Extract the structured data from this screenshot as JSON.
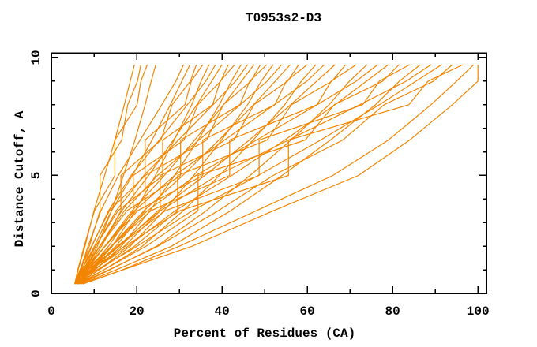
{
  "chart_data": {
    "type": "line",
    "title": "T0953s2-D3",
    "xlabel": "Percent of Residues (CA)",
    "ylabel": "Distance Cutoff, A",
    "xlim": [
      0,
      102
    ],
    "ylim": [
      0,
      10.2
    ],
    "x_major_ticks": [
      0,
      20,
      40,
      60,
      80,
      100
    ],
    "x_minor_ticks": [
      10,
      30,
      50,
      70,
      90
    ],
    "y_major_ticks": [
      0,
      5,
      10
    ],
    "y_minor_ticks": [
      1,
      2,
      3,
      4,
      6,
      7,
      8,
      9
    ],
    "grid": false,
    "legend": "none",
    "background": "#ffffff",
    "line_color": "#f28500",
    "axis_color": "#000000",
    "series_description": "Per-model accuracy curves: percent of CA residues fitting under each distance cutoff; all curves start near (5.5%, 0.4 A) and rise to ~9.7 A",
    "series": [
      [
        [
          5.5,
          0.4
        ],
        [
          6.3,
          1
        ],
        [
          7.9,
          2
        ],
        [
          10,
          3.5
        ],
        [
          12.5,
          5
        ],
        [
          14.9,
          6.5
        ],
        [
          17.1,
          8
        ],
        [
          18.5,
          9
        ],
        [
          19.5,
          9.7
        ]
      ],
      [
        [
          5.7,
          0.4
        ],
        [
          6.9,
          1
        ],
        [
          8.9,
          2
        ],
        [
          11.4,
          3.5
        ],
        [
          11.4,
          5
        ],
        [
          16.5,
          6.5
        ],
        [
          17.9,
          8
        ],
        [
          20.2,
          9
        ],
        [
          21,
          9.7
        ]
      ],
      [
        [
          5.5,
          0.4
        ],
        [
          6.2,
          1
        ],
        [
          7.7,
          2
        ],
        [
          10.1,
          3.5
        ],
        [
          14.9,
          5
        ],
        [
          14.9,
          6.5
        ],
        [
          20.1,
          8
        ],
        [
          21,
          9
        ],
        [
          22.5,
          9.7
        ]
      ],
      [
        [
          5.9,
          0.4
        ],
        [
          7.8,
          1
        ],
        [
          10.8,
          2
        ],
        [
          14.1,
          3.5
        ],
        [
          16.9,
          5
        ],
        [
          19.6,
          6.5
        ],
        [
          22,
          8
        ],
        [
          23.4,
          9
        ],
        [
          24.5,
          9.7
        ]
      ],
      [
        [
          5.5,
          0.4
        ],
        [
          6.8,
          1
        ],
        [
          8.6,
          2
        ],
        [
          11.6,
          3.5
        ],
        [
          15.7,
          5
        ],
        [
          20.8,
          6.5
        ],
        [
          25.9,
          8
        ],
        [
          29.2,
          9
        ],
        [
          31,
          9.7
        ]
      ],
      [
        [
          5.5,
          0.4
        ],
        [
          7.1,
          1
        ],
        [
          10.1,
          2
        ],
        [
          14.1,
          3.5
        ],
        [
          19,
          5
        ],
        [
          23.6,
          6.5
        ],
        [
          27.9,
          8
        ],
        [
          30.6,
          9
        ],
        [
          32.5,
          9.7
        ]
      ],
      [
        [
          5.8,
          0.4
        ],
        [
          8.1,
          1
        ],
        [
          11.8,
          2
        ],
        [
          16.3,
          3.5
        ],
        [
          16.3,
          5
        ],
        [
          25.7,
          6.5
        ],
        [
          28.3,
          8
        ],
        [
          32.6,
          9
        ],
        [
          34,
          9.7
        ]
      ],
      [
        [
          5.5,
          0.4
        ],
        [
          6.7,
          1
        ],
        [
          9.4,
          2
        ],
        [
          13.6,
          3.5
        ],
        [
          22,
          5
        ],
        [
          22,
          6.5
        ],
        [
          31.3,
          8
        ],
        [
          32.8,
          9
        ],
        [
          35.5,
          9.7
        ]
      ],
      [
        [
          6.1,
          0.4
        ],
        [
          9.3,
          1
        ],
        [
          14.3,
          2
        ],
        [
          19.7,
          3.5
        ],
        [
          24.4,
          5
        ],
        [
          28.8,
          6.5
        ],
        [
          32.9,
          8
        ],
        [
          35.1,
          9
        ],
        [
          37,
          9.7
        ]
      ],
      [
        [
          5.5,
          0.4
        ],
        [
          7.2,
          1
        ],
        [
          9.5,
          2
        ],
        [
          13.4,
          3.5
        ],
        [
          18.7,
          5
        ],
        [
          25.3,
          6.5
        ],
        [
          31.9,
          8
        ],
        [
          36.2,
          9
        ],
        [
          38.5,
          9.7
        ]
      ],
      [
        [
          5.5,
          0.4
        ],
        [
          7.6,
          1
        ],
        [
          11.4,
          2
        ],
        [
          16.5,
          3.5
        ],
        [
          22.8,
          5
        ],
        [
          28.6,
          6.5
        ],
        [
          34.1,
          8
        ],
        [
          37.6,
          9
        ],
        [
          40,
          9.7
        ]
      ],
      [
        [
          5.9,
          0.4
        ],
        [
          8.7,
          1
        ],
        [
          13.4,
          2
        ],
        [
          19.2,
          3.5
        ],
        [
          19.2,
          5
        ],
        [
          31.1,
          6.5
        ],
        [
          34.3,
          8
        ],
        [
          39.7,
          9
        ],
        [
          41.5,
          9.7
        ]
      ],
      [
        [
          5.5,
          0.4
        ],
        [
          7,
          1
        ],
        [
          10.4,
          2
        ],
        [
          15.6,
          3.5
        ],
        [
          26.1,
          5
        ],
        [
          26.1,
          6.5
        ],
        [
          37.8,
          8
        ],
        [
          39.6,
          9
        ],
        [
          43,
          9.7
        ]
      ],
      [
        [
          6.3,
          0.4
        ],
        [
          10.2,
          1
        ],
        [
          16.4,
          2
        ],
        [
          23.1,
          3.5
        ],
        [
          28.9,
          5
        ],
        [
          34.4,
          6.5
        ],
        [
          39.4,
          8
        ],
        [
          42.2,
          9
        ],
        [
          44.5,
          9.7
        ]
      ],
      [
        [
          5.5,
          0.4
        ],
        [
          7.5,
          1
        ],
        [
          10.4,
          2
        ],
        [
          15.2,
          3.5
        ],
        [
          21.7,
          5
        ],
        [
          29.8,
          6.5
        ],
        [
          37.9,
          8
        ],
        [
          43.2,
          9
        ],
        [
          46,
          9.7
        ]
      ],
      [
        [
          5.5,
          0.4
        ],
        [
          8,
          1
        ],
        [
          12.6,
          2
        ],
        [
          18.9,
          3.5
        ],
        [
          26.5,
          5
        ],
        [
          33.6,
          6.5
        ],
        [
          40.4,
          8
        ],
        [
          44.6,
          9
        ],
        [
          47.5,
          9.7
        ]
      ],
      [
        [
          5.9,
          0.4
        ],
        [
          9.4,
          1
        ],
        [
          15.1,
          2
        ],
        [
          22,
          3.5
        ],
        [
          22,
          5
        ],
        [
          36.4,
          6.5
        ],
        [
          40.3,
          8
        ],
        [
          46.8,
          9
        ],
        [
          49,
          9.7
        ]
      ],
      [
        [
          5.5,
          0.4
        ],
        [
          7.3,
          1
        ],
        [
          11.4,
          2
        ],
        [
          17.7,
          3.5
        ],
        [
          30.3,
          5
        ],
        [
          30.3,
          6.5
        ],
        [
          44.2,
          8
        ],
        [
          46.5,
          9
        ],
        [
          50.5,
          9.7
        ]
      ],
      [
        [
          6.4,
          0.4
        ],
        [
          11.1,
          1
        ],
        [
          18.5,
          2
        ],
        [
          26.4,
          3.5
        ],
        [
          33.4,
          5
        ],
        [
          39.9,
          6.5
        ],
        [
          46,
          8
        ],
        [
          49.2,
          9
        ],
        [
          52,
          9.7
        ]
      ],
      [
        [
          5.5,
          0.4
        ],
        [
          7.9,
          1
        ],
        [
          11.3,
          2
        ],
        [
          17.1,
          3.5
        ],
        [
          24.9,
          5
        ],
        [
          34.6,
          6.5
        ],
        [
          44.3,
          8
        ],
        [
          50.6,
          9
        ],
        [
          54,
          9.7
        ]
      ],
      [
        [
          5.5,
          0.4
        ],
        [
          8.5,
          1
        ],
        [
          14.1,
          2
        ],
        [
          21.7,
          3.5
        ],
        [
          30.8,
          5
        ],
        [
          39.3,
          6.5
        ],
        [
          47.4,
          8
        ],
        [
          52.5,
          9
        ],
        [
          56,
          9.7
        ]
      ],
      [
        [
          6,
          0.4
        ],
        [
          10.2,
          1
        ],
        [
          17.1,
          2
        ],
        [
          25.5,
          3.5
        ],
        [
          25.5,
          5
        ],
        [
          42.8,
          6.5
        ],
        [
          47.5,
          8
        ],
        [
          55.4,
          9
        ],
        [
          58,
          9.7
        ]
      ],
      [
        [
          5.5,
          0.4
        ],
        [
          7.7,
          1
        ],
        [
          12.6,
          2
        ],
        [
          20.2,
          3.5
        ],
        [
          35.5,
          5
        ],
        [
          35.5,
          6.5
        ],
        [
          52.4,
          8
        ],
        [
          55.1,
          9
        ],
        [
          60,
          9.7
        ]
      ],
      [
        [
          6.6,
          0.4
        ],
        [
          12.3,
          1
        ],
        [
          21.3,
          2
        ],
        [
          30.9,
          3.5
        ],
        [
          39.4,
          5
        ],
        [
          47.3,
          6.5
        ],
        [
          54.7,
          8
        ],
        [
          58.6,
          9
        ],
        [
          62,
          9.7
        ]
      ],
      [
        [
          5.5,
          0.4
        ],
        [
          8.4,
          1
        ],
        [
          12.5,
          2
        ],
        [
          19.5,
          3.5
        ],
        [
          28.9,
          5
        ],
        [
          40.6,
          6.5
        ],
        [
          52.3,
          8
        ],
        [
          59.9,
          9
        ],
        [
          64,
          9.7
        ]
      ],
      [
        [
          5.5,
          0.4
        ],
        [
          9.2,
          1
        ],
        [
          15.9,
          2
        ],
        [
          25,
          3.5
        ],
        [
          36,
          5
        ],
        [
          46.4,
          6.5
        ],
        [
          56.1,
          8
        ],
        [
          62.2,
          9
        ],
        [
          66.5,
          9.7
        ]
      ],
      [
        [
          6.1,
          0.4
        ],
        [
          11.2,
          1
        ],
        [
          19.5,
          2
        ],
        [
          29.6,
          3.5
        ],
        [
          29.6,
          5
        ],
        [
          50.6,
          6.5
        ],
        [
          56.3,
          8
        ],
        [
          65.8,
          9
        ],
        [
          69,
          9.7
        ]
      ],
      [
        [
          5.5,
          0.4
        ],
        [
          8.1,
          1
        ],
        [
          14.1,
          2
        ],
        [
          23.3,
          3.5
        ],
        [
          41.8,
          5
        ],
        [
          41.8,
          6.5
        ],
        [
          62.3,
          8
        ],
        [
          65.6,
          9
        ],
        [
          71.5,
          9.7
        ]
      ],
      [
        [
          6.9,
          0.4
        ],
        [
          13.7,
          1
        ],
        [
          24.7,
          2
        ],
        [
          36.3,
          3.5
        ],
        [
          46.6,
          5
        ],
        [
          56.2,
          6.5
        ],
        [
          65.1,
          8
        ],
        [
          69.9,
          9
        ],
        [
          74,
          9.7
        ]
      ],
      [
        [
          5.5,
          0.4
        ],
        [
          9.1,
          1
        ],
        [
          14,
          2
        ],
        [
          22.5,
          3.5
        ],
        [
          33.9,
          5
        ],
        [
          48.1,
          6.5
        ],
        [
          62.3,
          8
        ],
        [
          71.5,
          9
        ],
        [
          76.5,
          9.7
        ]
      ],
      [
        [
          5.5,
          0.4
        ],
        [
          9.9,
          1
        ],
        [
          18,
          2
        ],
        [
          29,
          3.5
        ],
        [
          42.3,
          5
        ],
        [
          54.7,
          6.5
        ],
        [
          66.5,
          8
        ],
        [
          73.9,
          9
        ],
        [
          79,
          9.7
        ]
      ],
      [
        [
          6.3,
          0.4
        ],
        [
          12.3,
          1
        ],
        [
          22.2,
          2
        ],
        [
          34.4,
          3.5
        ],
        [
          34.4,
          5
        ],
        [
          59.5,
          6.5
        ],
        [
          66.3,
          8
        ],
        [
          77.7,
          9
        ],
        [
          81.5,
          9.7
        ]
      ],
      [
        [
          5.5,
          0.4
        ],
        [
          8.6,
          1
        ],
        [
          15.7,
          2
        ],
        [
          26.7,
          3.5
        ],
        [
          48.7,
          5
        ],
        [
          48.7,
          6.5
        ],
        [
          73,
          8
        ],
        [
          76.9,
          9
        ],
        [
          84,
          9.7
        ]
      ],
      [
        [
          7.1,
          0.4
        ],
        [
          15.2,
          1
        ],
        [
          28.2,
          2
        ],
        [
          42,
          3.5
        ],
        [
          54.1,
          5
        ],
        [
          65.4,
          6.5
        ],
        [
          76,
          8
        ],
        [
          81.6,
          9
        ],
        [
          86.5,
          9.7
        ]
      ],
      [
        [
          5.5,
          0.4
        ],
        [
          9.7,
          1
        ],
        [
          15.5,
          2
        ],
        [
          25.5,
          3.5
        ],
        [
          38.9,
          5
        ],
        [
          55.6,
          6.5
        ],
        [
          72.3,
          8
        ],
        [
          83.2,
          9
        ],
        [
          89,
          9.7
        ]
      ],
      [
        [
          5.5,
          0.4
        ],
        [
          10.7,
          1
        ],
        [
          20.1,
          2
        ],
        [
          33,
          3.5
        ],
        [
          48.5,
          5
        ],
        [
          63.1,
          6.5
        ],
        [
          76.9,
          8
        ],
        [
          85.5,
          9
        ],
        [
          91.5,
          9.7
        ]
      ],
      [
        [
          6.4,
          0.4
        ],
        [
          13.5,
          1
        ],
        [
          25,
          2
        ],
        [
          39.1,
          3.5
        ],
        [
          52,
          5
        ],
        [
          68.3,
          6.5
        ],
        [
          78,
          8
        ],
        [
          89.6,
          9
        ],
        [
          94,
          9.7
        ]
      ],
      [
        [
          5.5,
          0.4
        ],
        [
          9.1,
          1
        ],
        [
          17.3,
          2
        ],
        [
          30.1,
          3.5
        ],
        [
          55.6,
          5
        ],
        [
          55.6,
          6.5
        ],
        [
          83.8,
          8
        ],
        [
          88.3,
          9
        ],
        [
          96.5,
          9.7
        ]
      ],
      [
        [
          7.4,
          0.4
        ],
        [
          16.7,
          1
        ],
        [
          30,
          2
        ],
        [
          48,
          3.5
        ],
        [
          66,
          5
        ],
        [
          79,
          6.5
        ],
        [
          89,
          8
        ],
        [
          95,
          9
        ],
        [
          99,
          9.7
        ]
      ],
      [
        [
          7.4,
          0.4
        ],
        [
          16.8,
          1
        ],
        [
          33,
          2
        ],
        [
          52,
          3.5
        ],
        [
          72,
          5
        ],
        [
          84,
          6.5
        ],
        [
          94,
          8
        ],
        [
          100,
          9
        ],
        [
          100,
          9.7
        ]
      ]
    ]
  }
}
